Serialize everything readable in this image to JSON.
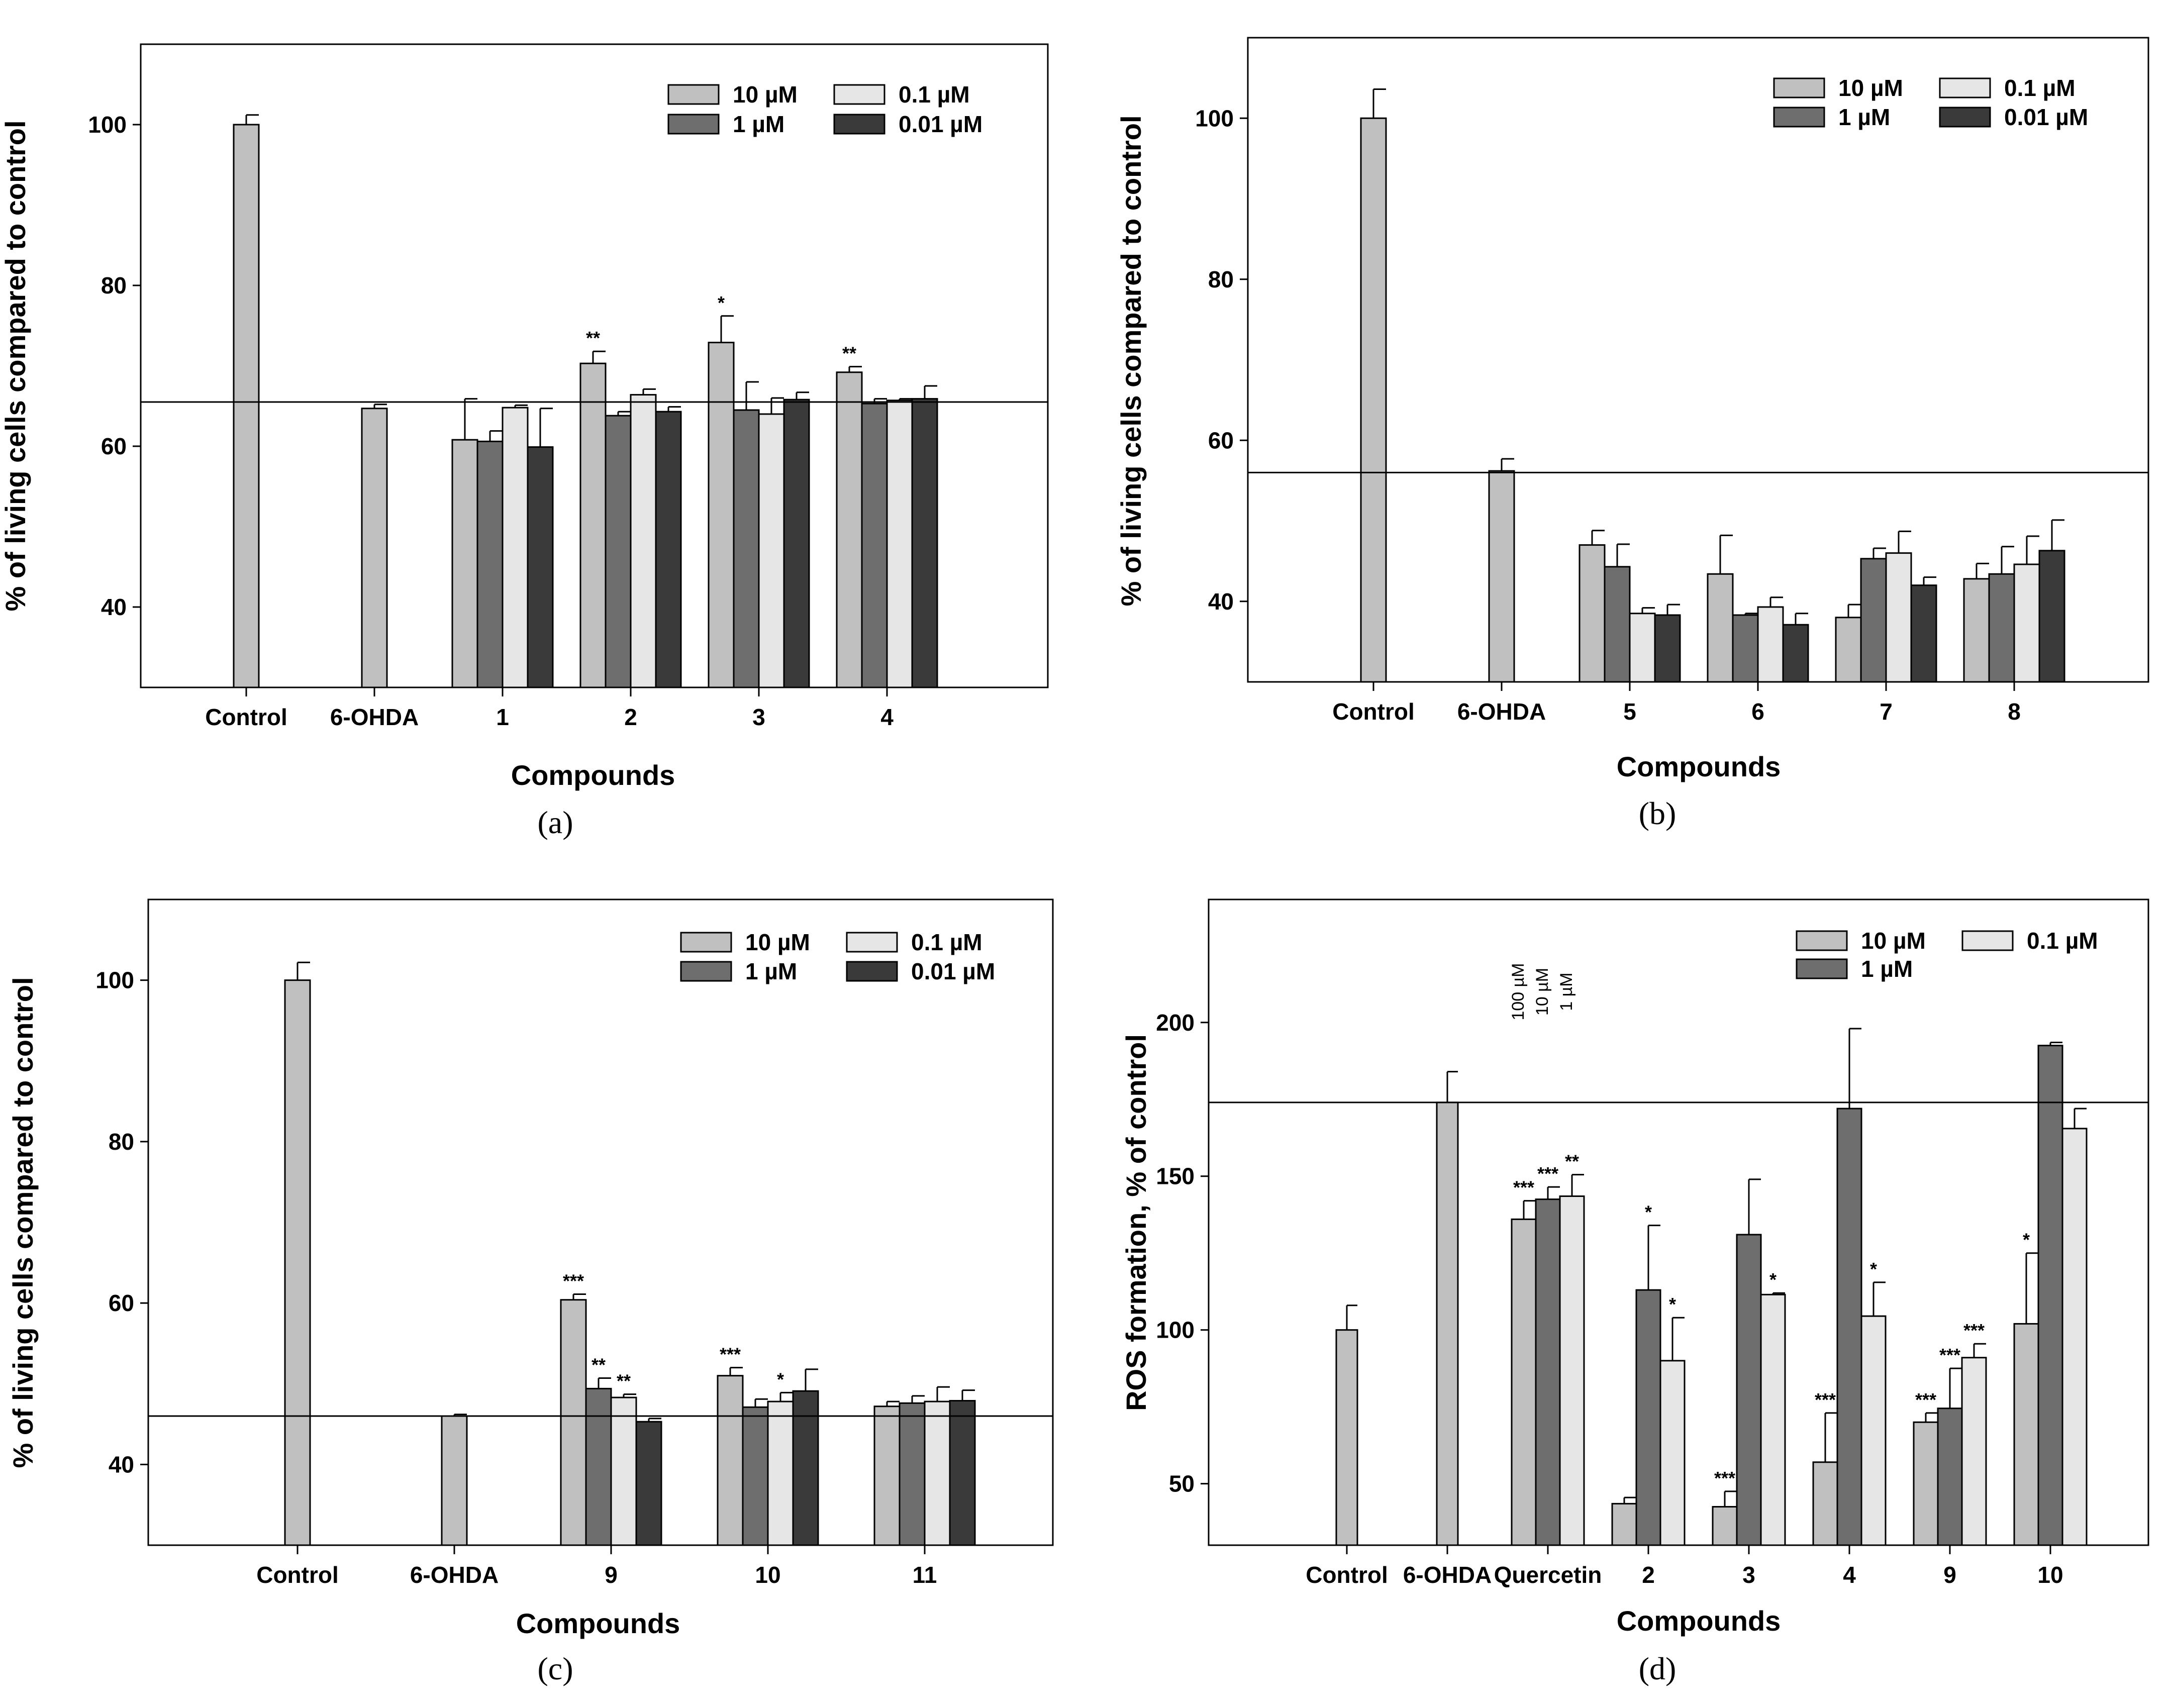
{
  "chart_data": [
    {
      "panel_label": "(a)",
      "type": "bar",
      "xlabel": "Compounds",
      "ylabel": "% of living cells compared to control",
      "ylim": [
        30,
        110
      ],
      "yticks": [
        40,
        60,
        80,
        100
      ],
      "reference_line": 65.5,
      "categories": [
        "Control",
        "6-OHDA",
        "1",
        "2",
        "3",
        "4"
      ],
      "series": [
        {
          "name": "10 µM",
          "color": "#c0c0c0",
          "values": [
            100,
            64.7,
            60.8,
            70.3,
            72.9,
            69.2
          ],
          "errors": [
            1.2,
            0.5,
            5.1,
            1.5,
            3.3,
            0.7
          ],
          "sig": [
            "",
            "",
            "",
            "**",
            "*",
            "**"
          ]
        },
        {
          "name": "1 µM",
          "color": "#6e6e6e",
          "values": [
            null,
            null,
            60.6,
            63.8,
            64.5,
            65.3
          ],
          "errors": [
            null,
            null,
            1.3,
            0.5,
            3.5,
            0.6
          ],
          "sig": [
            "",
            "",
            "",
            "",
            "",
            ""
          ]
        },
        {
          "name": "0.1 µM",
          "color": "#e6e6e6",
          "values": [
            null,
            null,
            64.8,
            66.4,
            64.0,
            65.7
          ],
          "errors": [
            null,
            null,
            0.3,
            0.7,
            2.0,
            0.2
          ],
          "sig": [
            "",
            "",
            "",
            "",
            "",
            ""
          ]
        },
        {
          "name": "0.01 µM",
          "color": "#3a3a3a",
          "values": [
            null,
            null,
            59.9,
            64.3,
            65.8,
            65.9
          ],
          "errors": [
            null,
            null,
            4.8,
            0.6,
            0.9,
            1.6
          ],
          "sig": [
            "",
            "",
            "",
            "",
            "",
            ""
          ]
        }
      ]
    },
    {
      "panel_label": "(b)",
      "type": "bar",
      "xlabel": "Compounds",
      "ylabel": "% of living cells compared to control",
      "ylim": [
        30,
        110
      ],
      "yticks": [
        40,
        60,
        80,
        100
      ],
      "reference_line": 56.0,
      "categories": [
        "Control",
        "6-OHDA",
        "5",
        "6",
        "7",
        "8"
      ],
      "series": [
        {
          "name": "10 µM",
          "color": "#c0c0c0",
          "values": [
            100,
            56.2,
            47.0,
            43.4,
            38.0,
            42.8
          ],
          "errors": [
            3.6,
            1.5,
            1.8,
            4.8,
            1.6,
            1.9
          ],
          "sig": [
            "",
            "",
            "",
            "",
            "",
            ""
          ]
        },
        {
          "name": "1 µM",
          "color": "#6e6e6e",
          "values": [
            null,
            null,
            44.3,
            38.3,
            45.3,
            43.4
          ],
          "errors": [
            null,
            null,
            2.8,
            0.2,
            1.3,
            3.4
          ],
          "sig": [
            "",
            "",
            "",
            "",
            "",
            ""
          ]
        },
        {
          "name": "0.1 µM",
          "color": "#e6e6e6",
          "values": [
            null,
            null,
            38.5,
            39.3,
            46.0,
            44.6
          ],
          "errors": [
            null,
            null,
            0.7,
            1.2,
            2.7,
            3.5
          ],
          "sig": [
            "",
            "",
            "",
            "",
            "",
            ""
          ]
        },
        {
          "name": "0.01 µM",
          "color": "#3a3a3a",
          "values": [
            null,
            null,
            38.3,
            37.1,
            42.0,
            46.3
          ],
          "errors": [
            null,
            null,
            1.3,
            1.4,
            1.0,
            3.8
          ],
          "sig": [
            "",
            "",
            "",
            "",
            "",
            ""
          ]
        }
      ]
    },
    {
      "panel_label": "(c)",
      "type": "bar",
      "xlabel": "Compounds",
      "ylabel": "% of living cells compared to control",
      "ylim": [
        30,
        110
      ],
      "yticks": [
        40,
        60,
        80,
        100
      ],
      "reference_line": 46.0,
      "categories": [
        "Control",
        "6-OHDA",
        "9",
        "10",
        "11"
      ],
      "series": [
        {
          "name": "10 µM",
          "color": "#c0c0c0",
          "values": [
            100,
            46.0,
            60.4,
            51.0,
            47.2
          ],
          "errors": [
            2.2,
            0.2,
            0.7,
            1.0,
            0.6
          ],
          "sig": [
            "",
            "",
            "***",
            "***",
            ""
          ]
        },
        {
          "name": "1 µM",
          "color": "#6e6e6e",
          "values": [
            null,
            null,
            49.4,
            47.1,
            47.6
          ],
          "errors": [
            null,
            null,
            1.3,
            1.0,
            0.9
          ],
          "sig": [
            "",
            "",
            "**",
            "",
            ""
          ]
        },
        {
          "name": "0.1 µM",
          "color": "#e6e6e6",
          "values": [
            null,
            null,
            48.3,
            47.8,
            47.8
          ],
          "errors": [
            null,
            null,
            0.4,
            1.1,
            1.8
          ],
          "sig": [
            "",
            "",
            "**",
            "*",
            ""
          ]
        },
        {
          "name": "0.01 µM",
          "color": "#3a3a3a",
          "values": [
            null,
            null,
            45.3,
            49.1,
            47.9
          ],
          "errors": [
            null,
            null,
            0.4,
            2.7,
            1.3
          ],
          "sig": [
            "",
            "",
            "",
            "",
            ""
          ]
        }
      ]
    },
    {
      "panel_label": "(d)",
      "type": "bar",
      "xlabel": "Compounds",
      "ylabel": "ROS formation, % of control",
      "ylim": [
        30,
        240
      ],
      "yticks": [
        50,
        100,
        150,
        200
      ],
      "reference_line": 174,
      "categories": [
        "Control",
        "6-OHDA",
        "Quercetin",
        "2",
        "3",
        "4",
        "9",
        "10"
      ],
      "quercetin_concentration_labels": [
        "100 µM",
        "10 µM",
        "1 µM"
      ],
      "series": [
        {
          "name": "10 µM",
          "color": "#c0c0c0",
          "values": [
            100,
            174,
            136,
            43.5,
            42.5,
            57,
            70,
            102
          ],
          "errors": [
            8,
            10,
            6,
            2,
            5,
            16,
            3,
            23
          ],
          "sig": [
            "",
            "",
            "***",
            "",
            "***",
            "***",
            "***",
            "*"
          ]
        },
        {
          "name": "1 µM",
          "color": "#6e6e6e",
          "values": [
            null,
            null,
            142.5,
            113,
            131,
            172,
            74.5,
            192.5
          ],
          "errors": [
            null,
            null,
            4,
            21,
            18,
            26,
            13,
            1
          ],
          "sig": [
            "",
            "",
            "***",
            "*",
            "",
            "",
            "***",
            ""
          ]
        },
        {
          "name": "0.1 µM",
          "color": "#e6e6e6",
          "values": [
            null,
            null,
            143.5,
            90,
            111.5,
            104.5,
            91,
            165.5
          ],
          "errors": [
            null,
            null,
            7,
            14,
            0.5,
            11,
            4.5,
            6.5
          ],
          "sig": [
            "",
            "",
            "**",
            "*",
            "*",
            "*",
            "***",
            ""
          ]
        }
      ]
    }
  ]
}
